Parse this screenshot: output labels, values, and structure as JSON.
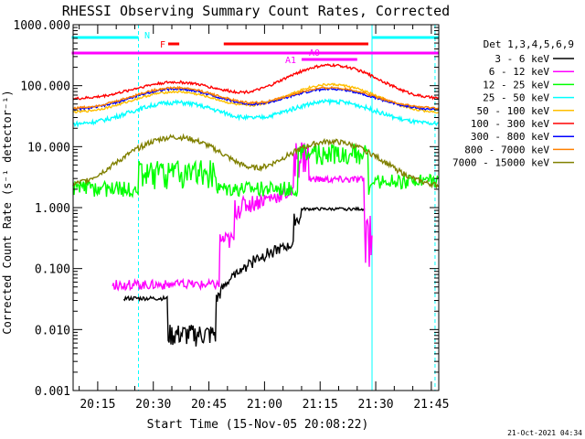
{
  "chart_data": {
    "type": "line",
    "title": "RHESSI Observing Summary Count Rates, Corrected",
    "xlabel": "Start Time (15-Nov-05 20:08:22)",
    "ylabel": "Corrected Count Rate (s⁻¹ detector⁻¹)",
    "y_scale": "log",
    "ylim": [
      0.001,
      1000
    ],
    "xlim": [
      "20:08",
      "21:47"
    ],
    "x_ticks": [
      "20:15",
      "20:30",
      "20:45",
      "21:00",
      "21:15",
      "21:30",
      "21:45"
    ],
    "y_ticks": [
      "1000.000",
      "100.000",
      "10.000",
      "1.000",
      "0.100",
      "0.010",
      "0.001"
    ],
    "legend_title": "Det 1,3,4,5,6,9",
    "legend_position": "right",
    "timestamp": "21-Oct-2021 04:34",
    "series": [
      {
        "name": "3 - 6 keV",
        "color": "#000000"
      },
      {
        "name": "6 - 12 keV",
        "color": "#ff00ff"
      },
      {
        "name": "12 - 25 keV",
        "color": "#00ff00"
      },
      {
        "name": "25 - 50 keV",
        "color": "#00ffff"
      },
      {
        "name": "50 - 100 keV",
        "color": "#ffbf00"
      },
      {
        "name": "100 - 300 keV",
        "color": "#ff0000"
      },
      {
        "name": "300 - 800 keV",
        "color": "#0000ff"
      },
      {
        "name": "800 - 7000 keV",
        "color": "#ff8000"
      },
      {
        "name": "7000 - 15000 keV",
        "color": "#808000"
      }
    ],
    "annotations": [
      {
        "label": "N",
        "color": "#00ffff"
      },
      {
        "label": "F",
        "color": "#ff0000"
      },
      {
        "label": "A0",
        "color": "#ff00ff"
      },
      {
        "label": "A1",
        "color": "#ff00ff"
      }
    ],
    "night_bars": [
      [
        "20:08",
        "20:26"
      ],
      [
        "21:29",
        "21:47"
      ]
    ],
    "flag_bars": [
      {
        "label": "F",
        "color": "#ff0000",
        "range": [
          [
            "20:34",
            "20:37"
          ],
          [
            "20:49",
            "21:28"
          ]
        ]
      },
      {
        "label": "A0",
        "color": "#ff00ff",
        "range": [
          [
            "20:08",
            "21:47"
          ]
        ]
      },
      {
        "label": "A1",
        "color": "#ff00ff",
        "range": [
          [
            "21:10",
            "21:25"
          ]
        ]
      }
    ],
    "night_lines": [
      "20:26",
      "21:29",
      "21:46"
    ],
    "orbit_line": "21:29"
  }
}
